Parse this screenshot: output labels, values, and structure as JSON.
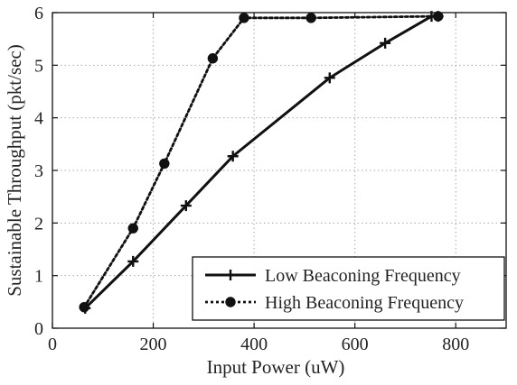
{
  "chart_data": {
    "type": "line",
    "title": "",
    "xlabel": "Input Power (uW)",
    "ylabel": "Sustainable Throughput (pkt/sec)",
    "xlim": [
      0,
      900
    ],
    "ylim": [
      0,
      6
    ],
    "xticks": [
      0,
      200,
      400,
      600,
      800
    ],
    "yticks": [
      0,
      1,
      2,
      3,
      4,
      5,
      6
    ],
    "grid": true,
    "legend_position": "bottom-right",
    "series": [
      {
        "name": "Low Beaconing Frequency",
        "line_style": "solid",
        "marker": "plus",
        "color": "#111111",
        "x": [
          65,
          160,
          265,
          358,
          550,
          660,
          752,
          765
        ],
        "y": [
          0.38,
          1.27,
          2.33,
          3.27,
          4.76,
          5.42,
          5.93,
          5.93
        ]
      },
      {
        "name": "High Beaconing Frequency",
        "line_style": "dotted",
        "marker": "circle",
        "color": "#111111",
        "x": [
          63,
          160,
          222,
          318,
          380,
          513,
          765
        ],
        "y": [
          0.4,
          1.9,
          3.13,
          5.13,
          5.9,
          5.9,
          5.93
        ]
      }
    ]
  }
}
